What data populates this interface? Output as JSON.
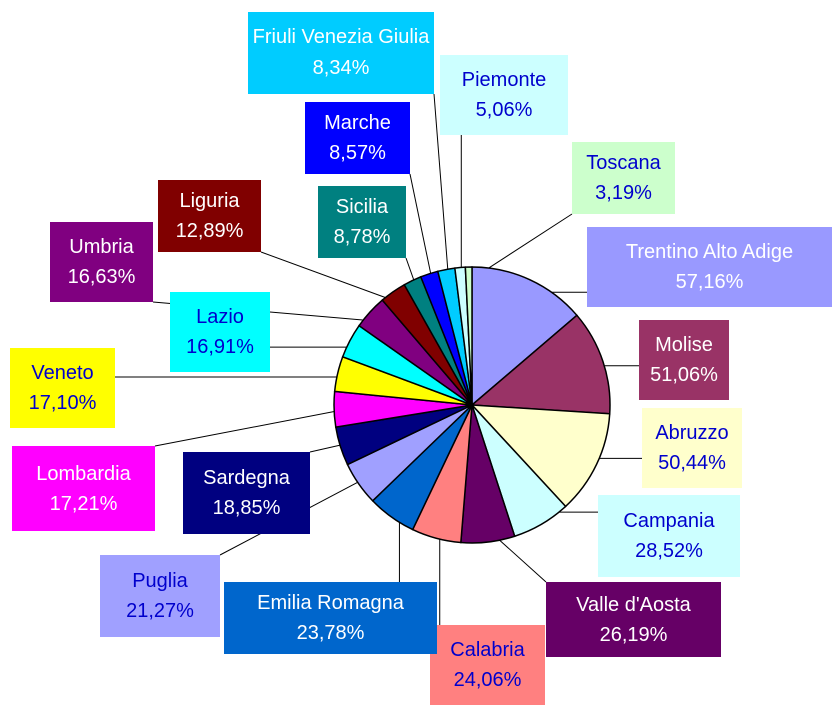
{
  "chart_data": {
    "type": "pie",
    "categories": [
      "Trentino Alto Adige",
      "Molise",
      "Abruzzo",
      "Campania",
      "Valle d'Aosta",
      "Calabria",
      "Emilia Romagna",
      "Puglia",
      "Sardegna",
      "Lombardia",
      "Veneto",
      "Lazio",
      "Umbria",
      "Liguria",
      "Sicilia",
      "Marche",
      "Friuli Venezia Giulia",
      "Piemonte",
      "Toscana"
    ],
    "values": [
      57.16,
      51.06,
      50.44,
      28.52,
      26.19,
      24.06,
      23.78,
      21.27,
      18.85,
      17.21,
      17.1,
      16.91,
      16.63,
      12.89,
      8.78,
      8.57,
      8.34,
      5.06,
      3.19
    ],
    "value_labels": [
      "57,16%",
      "51,06%",
      "50,44%",
      "28,52%",
      "26,19%",
      "24,06%",
      "23,78%",
      "21,27%",
      "18,85%",
      "17,21%",
      "17,10%",
      "16,91%",
      "16,63%",
      "12,89%",
      "8,78%",
      "8,57%",
      "8,34%",
      "5,06%",
      "3,19%"
    ],
    "colors": [
      "#9999ff",
      "#993366",
      "#ffffcc",
      "#ccffff",
      "#660066",
      "#ff8080",
      "#0066cc",
      "#a0a0ff",
      "#000080",
      "#ff00ff",
      "#ffff00",
      "#00ffff",
      "#800080",
      "#800000",
      "#008080",
      "#0000ff",
      "#00ccff",
      "#ccffff",
      "#ccffcc"
    ]
  }
}
